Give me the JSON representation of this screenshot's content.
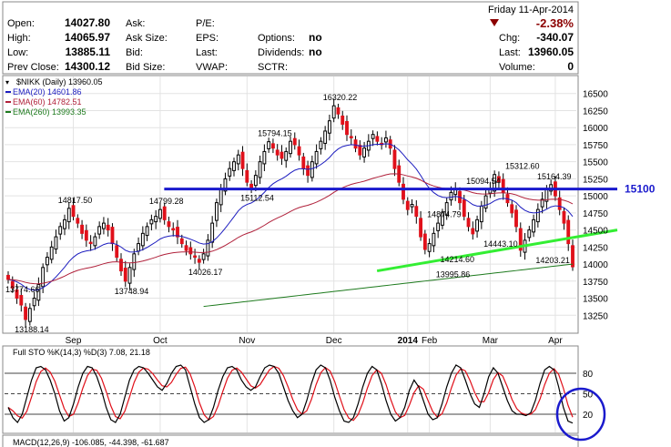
{
  "quote_header": {
    "left": [
      {
        "label": "Open:",
        "value": "14027.80"
      },
      {
        "label": "High:",
        "value": "14065.97"
      },
      {
        "label": "Low:",
        "value": "13885.11"
      },
      {
        "label": "Prev Close:",
        "value": "14300.12"
      }
    ],
    "mid": [
      {
        "label": "Ask:",
        "value": ""
      },
      {
        "label": "Ask Size:",
        "value": ""
      },
      {
        "label": "Bid:",
        "value": ""
      },
      {
        "label": "Bid Size:",
        "value": ""
      }
    ],
    "mid2": [
      {
        "label": "P/E:",
        "value": ""
      },
      {
        "label": "EPS:",
        "value": ""
      },
      {
        "label": "Last:",
        "value": ""
      },
      {
        "label": "VWAP:",
        "value": ""
      }
    ],
    "mid3": [
      {
        "label": "Options:",
        "value": "no"
      },
      {
        "label": "Dividends:",
        "value": "no"
      },
      {
        "label": "SCTR:",
        "value": ""
      }
    ],
    "date": "Friday  11-Apr-2014",
    "change_pct": "-2.38%",
    "right": [
      {
        "label": "Chg:",
        "value": "-340.07"
      },
      {
        "label": "Last:",
        "value": "13960.05"
      },
      {
        "label": "Volume:",
        "value": "0"
      }
    ],
    "colors": {
      "down": "#8b0000"
    }
  },
  "chart_data": [
    {
      "type": "candlestick",
      "title": "$NIKK (Daily) 13960.05",
      "legend": [
        {
          "name": "EMA(20) 14601.86",
          "color": "#1c1cbf"
        },
        {
          "name": "EMA(60) 14782.51",
          "color": "#b0203a"
        },
        {
          "name": "EMA(260) 13993.35",
          "color": "#1d7a1d"
        }
      ],
      "ylim": [
        13000,
        16750
      ],
      "y_ticks": [
        "16500",
        "16250",
        "16000",
        "15750",
        "15500",
        "15250",
        "15000",
        "14750",
        "14500",
        "14250",
        "14000",
        "13750",
        "13500",
        "13250"
      ],
      "x_tick_labels": [
        "Sep",
        "Oct",
        "Nov",
        "Dec",
        "2014",
        "Feb",
        "Mar",
        "Apr"
      ],
      "close_series": [
        13774.66,
        13650,
        13500,
        13400,
        13188.14,
        13350,
        13500,
        13700,
        13950,
        14100,
        14250,
        14400,
        14550,
        14650,
        14817.5,
        14700,
        14600,
        14450,
        14350,
        14300,
        14400,
        14550,
        14600,
        14500,
        14300,
        14100,
        13900,
        13748.94,
        13950,
        14150,
        14300,
        14450,
        14550,
        14650,
        14700,
        14799.28,
        14650,
        14550,
        14500,
        14400,
        14300,
        14200,
        14150,
        14100,
        14026.17,
        14150,
        14350,
        14600,
        14900,
        15100,
        15250,
        15400,
        15500,
        15600,
        15400,
        15200,
        15112.54,
        15300,
        15500,
        15650,
        15794.15,
        15700,
        15600,
        15550,
        15650,
        15800,
        15750,
        15600,
        15400,
        15300,
        15500,
        15650,
        15800,
        15950,
        16100,
        16320.22,
        16200,
        16050,
        15900,
        15850,
        15700,
        15600,
        15700,
        15800,
        15900,
        15800,
        15750,
        15850,
        15700,
        15400,
        15200,
        14950,
        14800,
        14874.79,
        14700,
        14400,
        14214.6,
        14300,
        14450,
        14600,
        14750,
        14900,
        15050,
        15094.54,
        14900,
        14700,
        14550,
        14443.1,
        14650,
        14850,
        15000,
        15100,
        15312.6,
        15200,
        15050,
        14900,
        14750,
        14550,
        14203.21,
        14350,
        14500,
        14650,
        14800,
        14950,
        15100,
        15164.39,
        15000,
        14800,
        14600,
        14300,
        13960.05
      ],
      "annotations": [
        "13774.66",
        "13188.14",
        "14817.50",
        "13748.94",
        "14799.28",
        "14026.17",
        "15794.15",
        "15112.54",
        "16320.22",
        "14874.79",
        "14214.60",
        "13995.86",
        "15094.54",
        "14443.10",
        "15312.60",
        "14203.21",
        "15164.39"
      ],
      "trendlines": [
        {
          "label": "15100",
          "color": "#1a1acd",
          "from": [
            0.27,
            15100
          ],
          "to": [
            1.0,
            15100
          ]
        },
        {
          "label": "",
          "color": "#33ee33",
          "from": [
            0.62,
            13900
          ],
          "to": [
            1.0,
            14500
          ]
        }
      ]
    },
    {
      "type": "line",
      "title": "Full STO %K(14,3) %D(3) 7.08, 21.18",
      "series": [
        {
          "name": "%K(14,3)",
          "color": "#000000"
        },
        {
          "name": "%D(3)",
          "color": "#e0101a"
        }
      ],
      "ylim": [
        0,
        100
      ],
      "y_ticks": [
        "80",
        "50",
        "20"
      ],
      "k_values": [
        30,
        15,
        8,
        20,
        45,
        70,
        88,
        90,
        85,
        70,
        50,
        25,
        10,
        15,
        35,
        60,
        80,
        90,
        88,
        75,
        55,
        30,
        12,
        8,
        20,
        45,
        70,
        85,
        90,
        88,
        80,
        70,
        60,
        55,
        65,
        80,
        90,
        92,
        85,
        60,
        35,
        15,
        8,
        12,
        30,
        55,
        75,
        88,
        90,
        85,
        70,
        60,
        55,
        60,
        75,
        88,
        92,
        90,
        80,
        60,
        40,
        25,
        15,
        20,
        40,
        65,
        85,
        92,
        88,
        70,
        45,
        25,
        10,
        8,
        15,
        35,
        60,
        80,
        90,
        85,
        65,
        40,
        20,
        10,
        15,
        30,
        55,
        70,
        60,
        40,
        20,
        12,
        15,
        35,
        60,
        80,
        92,
        88,
        70,
        50,
        35,
        30,
        50,
        75,
        88,
        80,
        60,
        40,
        25,
        20,
        20,
        18,
        22,
        40,
        65,
        85,
        90,
        85,
        60,
        30,
        10,
        7.08
      ],
      "annotation_values": [
        "7.08",
        "21.18"
      ]
    },
    {
      "type": "line",
      "title": "MACD(12,26,9) -106.085, -44.398, -61.687"
    }
  ]
}
